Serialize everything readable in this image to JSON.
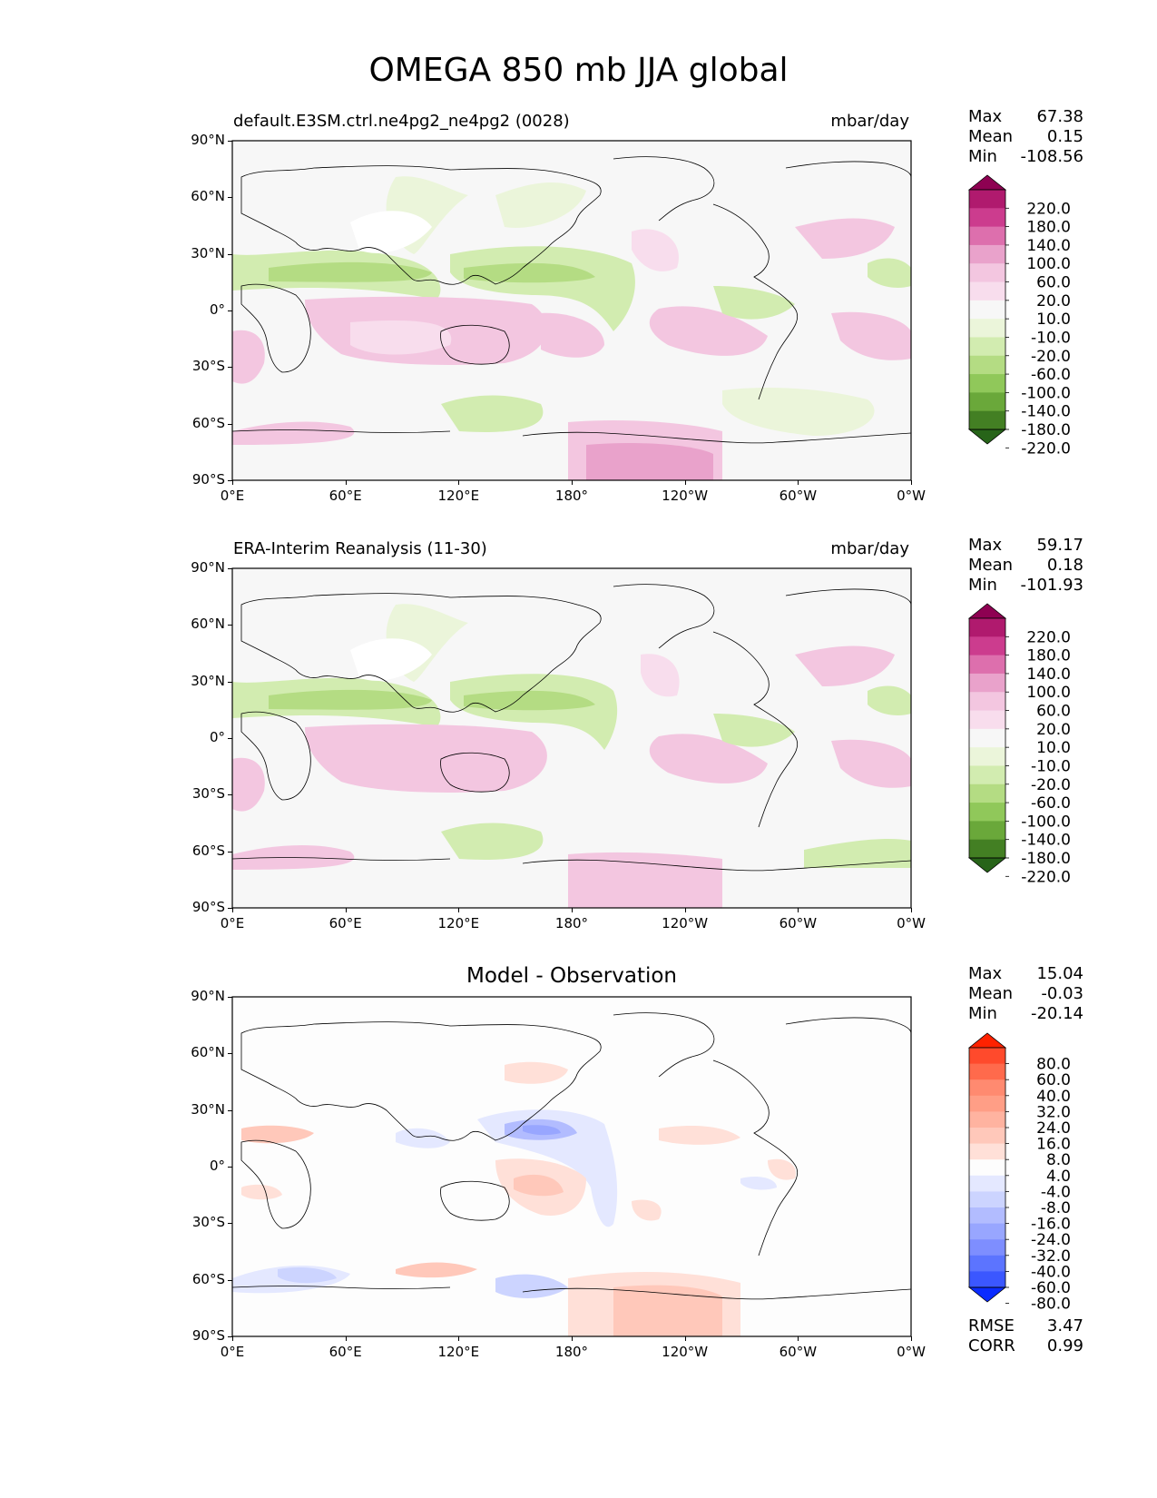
{
  "figure": {
    "title": "OMEGA 850 mb JJA global"
  },
  "axes": {
    "lat_labels": [
      "90°N",
      "60°N",
      "30°N",
      "0°",
      "30°S",
      "60°S",
      "90°S"
    ],
    "lon_labels": [
      "0°E",
      "60°E",
      "120°E",
      "180°",
      "120°W",
      "60°W",
      "0°W"
    ]
  },
  "panels": [
    {
      "title_left": "default.E3SM.ctrl.ne4pg2_ne4pg2 (0028)",
      "title_right": "mbar/day",
      "title_center": "",
      "stats": {
        "max_label": "Max",
        "max": "67.38",
        "mean_label": "Mean",
        "mean": "0.15",
        "min_label": "Min",
        "min": "-108.56"
      },
      "colorbar": {
        "levels": [
          "220.0",
          "180.0",
          "140.0",
          "100.0",
          "60.0",
          "20.0",
          "10.0",
          "-10.0",
          "-20.0",
          "-60.0",
          "-100.0",
          "-140.0",
          "-180.0",
          "-220.0"
        ],
        "colors": [
          "#8e0152",
          "#b01a6e",
          "#cc3c8e",
          "#dd6fad",
          "#e9a2cb",
          "#f3c6e0",
          "#f8dded",
          "#f7f7f7",
          "#ebf5da",
          "#d2ecb0",
          "#b4dc83",
          "#90c85a",
          "#6aa83a",
          "#437f23",
          "#276419"
        ]
      }
    },
    {
      "title_left": "ERA-Interim Reanalysis (11-30)",
      "title_right": "mbar/day",
      "title_center": "",
      "stats": {
        "max_label": "Max",
        "max": "59.17",
        "mean_label": "Mean",
        "mean": "0.18",
        "min_label": "Min",
        "min": "-101.93"
      },
      "colorbar": {
        "levels": [
          "220.0",
          "180.0",
          "140.0",
          "100.0",
          "60.0",
          "20.0",
          "10.0",
          "-10.0",
          "-20.0",
          "-60.0",
          "-100.0",
          "-140.0",
          "-180.0",
          "-220.0"
        ],
        "colors": [
          "#8e0152",
          "#b01a6e",
          "#cc3c8e",
          "#dd6fad",
          "#e9a2cb",
          "#f3c6e0",
          "#f8dded",
          "#f7f7f7",
          "#ebf5da",
          "#d2ecb0",
          "#b4dc83",
          "#90c85a",
          "#6aa83a",
          "#437f23",
          "#276419"
        ]
      }
    },
    {
      "title_left": "",
      "title_right": "",
      "title_center": "Model - Observation",
      "stats": {
        "max_label": "Max",
        "max": "15.04",
        "mean_label": "Mean",
        "mean": "-0.03",
        "min_label": "Min",
        "min": "-20.14"
      },
      "extra_stats": {
        "rmse_label": "RMSE",
        "rmse": "3.47",
        "corr_label": "CORR",
        "corr": "0.99"
      },
      "colorbar": {
        "levels": [
          "80.0",
          "60.0",
          "40.0",
          "32.0",
          "24.0",
          "16.0",
          "8.0",
          "4.0",
          "-4.0",
          "-8.0",
          "-16.0",
          "-24.0",
          "-32.0",
          "-40.0",
          "-60.0",
          "-80.0"
        ],
        "colors": [
          "#ff2200",
          "#ff4a2c",
          "#ff6a4c",
          "#ff8a70",
          "#ff9e86",
          "#ffb3a0",
          "#ffc8ba",
          "#ffe0d8",
          "#fdfdfd",
          "#e4e8ff",
          "#ccd4ff",
          "#b2bcff",
          "#98a6ff",
          "#7e8eff",
          "#5c74ff",
          "#3b57ff",
          "#0a2bff"
        ]
      }
    }
  ]
}
